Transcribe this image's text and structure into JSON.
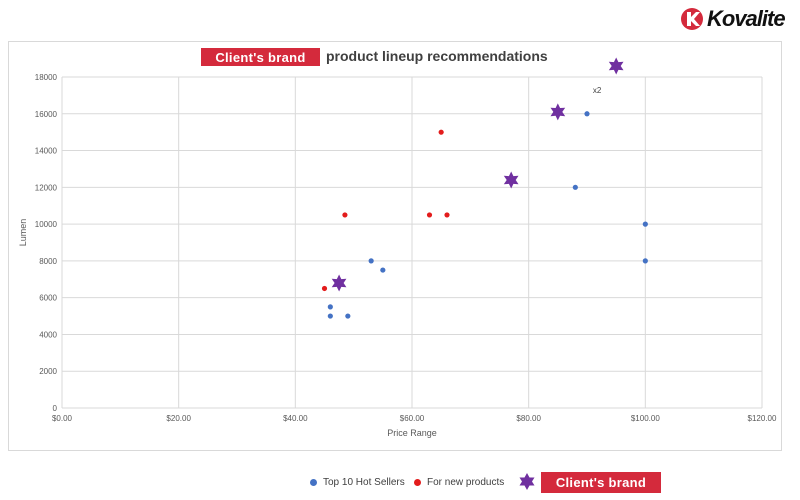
{
  "logo": {
    "brand": "Kovalite",
    "icon": "kovalite-logo-icon"
  },
  "title": {
    "badge_text": "Client's brand",
    "text": "product lineup recommendations"
  },
  "colors": {
    "top_sellers": "#4472c4",
    "new_products": "#e31c1c",
    "client_brand": "#7030a0",
    "badge": "#d42a3c",
    "grid": "#d9d9d9"
  },
  "chart_data": {
    "type": "scatter",
    "title": "Client's brand product lineup recommendations",
    "xlabel": "Price Range",
    "ylabel": "Lumen",
    "xlim": [
      0,
      120
    ],
    "ylim": [
      0,
      18000
    ],
    "x_ticks": [
      0,
      20,
      40,
      60,
      80,
      100,
      120
    ],
    "x_tick_labels": [
      "$0.00",
      "$20.00",
      "$40.00",
      "$60.00",
      "$80.00",
      "$100.00",
      "$120.00"
    ],
    "y_ticks": [
      0,
      2000,
      4000,
      6000,
      8000,
      10000,
      12000,
      14000,
      16000,
      18000
    ],
    "y_tick_labels": [
      "0",
      "2000",
      "4000",
      "6000",
      "8000",
      "10000",
      "12000",
      "14000",
      "16000",
      "18000"
    ],
    "grid": true,
    "legend_position": "bottom",
    "series": [
      {
        "name": "Top 10 Hot Sellers",
        "marker": "circle",
        "points": [
          [
            46,
            5500
          ],
          [
            46,
            5000
          ],
          [
            49,
            5000
          ],
          [
            53,
            8000
          ],
          [
            55,
            7500
          ],
          [
            88,
            12000
          ],
          [
            90,
            16000
          ],
          [
            100,
            10000
          ],
          [
            100,
            8000
          ]
        ]
      },
      {
        "name": "For new products",
        "marker": "circle",
        "points": [
          [
            45,
            6500
          ],
          [
            48.5,
            10500
          ],
          [
            63,
            10500
          ],
          [
            65,
            15000
          ],
          [
            66,
            10500
          ]
        ]
      },
      {
        "name": "Client's brand",
        "marker": "star",
        "points": [
          [
            47.5,
            6800
          ],
          [
            77,
            12400
          ],
          [
            85,
            16100
          ],
          [
            95,
            18600
          ]
        ]
      }
    ],
    "annotations": [
      {
        "text": "x2",
        "x": 91,
        "y": 17300
      }
    ]
  },
  "legend": {
    "items": [
      {
        "label": "Top 10 Hot Sellers"
      },
      {
        "label": "For new products"
      },
      {
        "label": "Client's brand"
      }
    ]
  }
}
